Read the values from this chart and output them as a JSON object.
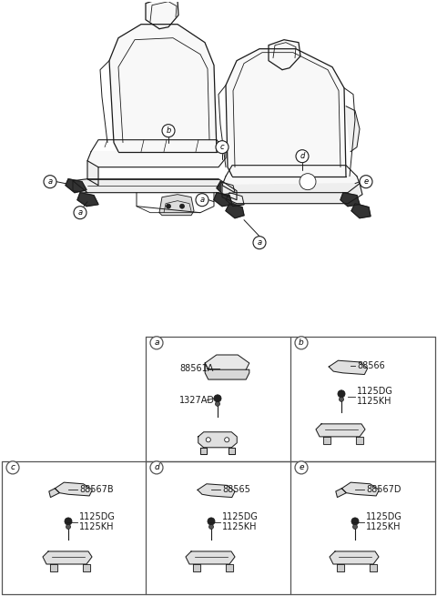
{
  "bg_color": "#ffffff",
  "line_color": "#1a1a1a",
  "grid_color": "#555555",
  "parts_grid": {
    "a": {
      "part1": "88561A",
      "part2": "1327AD"
    },
    "b": {
      "part1": "88566",
      "bolt1": "1125DG",
      "bolt2": "1125KH"
    },
    "c": {
      "part1": "88567B",
      "bolt1": "1125DG",
      "bolt2": "1125KH"
    },
    "d": {
      "part1": "88565",
      "bolt1": "1125DG",
      "bolt2": "1125KH"
    },
    "e": {
      "part1": "88567D",
      "bolt1": "1125DG",
      "bolt2": "1125KH"
    }
  },
  "label_font": 6.5,
  "part_font": 7.0
}
